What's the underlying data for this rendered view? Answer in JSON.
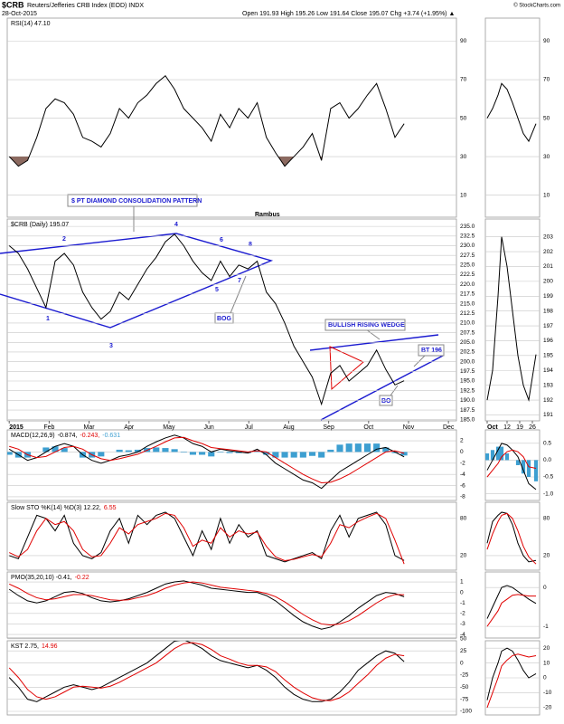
{
  "header": {
    "symbol": "$CRB",
    "name": "Reuters/Jefferies CRB Index (EOD) INDX",
    "date": "28-Oct-2015",
    "quote": "Open 191.93 High 195.26 Low 191.64 Close 195.07 Chg +3.74 (+1.95%) ▲",
    "credit": "© StockCharts.com",
    "author": "Rambus"
  },
  "annotations": [
    "$ PT DIAMOND CONSOLIDATION PATTERN",
    "1",
    "2",
    "3",
    "4",
    "5",
    "6",
    "7",
    "8",
    "BOG",
    "BULLISH RISING WEDGE",
    "BT 196",
    "BO"
  ],
  "time_axis": {
    "x": [
      0,
      0.23,
      0.46,
      0.69,
      0.92,
      1.15,
      1.38,
      1.61,
      1.84,
      2.07,
      2.3,
      2.53,
      2.76,
      2.99,
      3.22,
      3.45,
      3.68,
      3.91,
      4.14,
      4.37,
      4.6,
      4.83,
      5.06,
      5.29,
      5.52,
      5.75,
      5.98,
      6.21,
      6.44,
      6.67,
      6.9,
      7.13,
      7.36,
      7.59,
      7.82,
      8.05,
      8.28,
      8.51,
      8.74,
      8.97,
      9.2,
      9.43,
      9.66,
      9.89
    ],
    "xlim": [
      -0.05,
      11.2
    ],
    "xticks": [
      {
        "value": 0,
        "label": "2015"
      },
      {
        "value": 1,
        "label": "Feb"
      },
      {
        "value": 2,
        "label": "Mar"
      },
      {
        "value": 3,
        "label": "Apr"
      },
      {
        "value": 4,
        "label": "May"
      },
      {
        "value": 5,
        "label": "Jun"
      },
      {
        "value": 6,
        "label": "Jul"
      },
      {
        "value": 7,
        "label": "Aug"
      },
      {
        "value": 8,
        "label": "Sep"
      },
      {
        "value": 9,
        "label": "Oct"
      },
      {
        "value": 10,
        "label": "Nov"
      },
      {
        "value": 11,
        "label": "Dec"
      }
    ],
    "mini_x": [
      1,
      4,
      7,
      9,
      12,
      15,
      18,
      21,
      24,
      28
    ],
    "mini_xlim": [
      0,
      30
    ],
    "mini_xticks": [
      {
        "value": 1,
        "label": "Oct"
      },
      12,
      19,
      26
    ]
  },
  "chart_data": [
    {
      "type": "line",
      "label_parts": [
        {
          "text": "RSI(14) 47.10",
          "color": "#000000"
        }
      ],
      "ylim": [
        -1.5,
        102
      ],
      "yticks": [
        90,
        70,
        50,
        30,
        10
      ],
      "fill_below": 30,
      "fill_color": "#8c6a60",
      "series": [
        {
          "color": "#000000",
          "values": [
            30,
            25,
            28,
            40,
            55,
            60,
            58,
            52,
            40,
            38,
            35,
            42,
            55,
            50,
            58,
            62,
            68,
            72,
            65,
            55,
            50,
            45,
            38,
            52,
            45,
            55,
            50,
            58,
            40,
            32,
            25,
            30,
            35,
            42,
            28,
            55,
            58,
            50,
            55,
            62,
            68,
            55,
            40,
            47.1
          ]
        }
      ],
      "mini_ylim": [
        -1.5,
        102
      ],
      "mini_yticks": [
        90,
        70,
        50,
        30,
        10
      ],
      "mini": [
        {
          "color": "#000000",
          "values": [
            50,
            55,
            62,
            68,
            65,
            58,
            50,
            42,
            38,
            47.1
          ]
        }
      ]
    },
    {
      "type": "line",
      "label_parts": [
        {
          "text": "$CRB (Daily) 195.07",
          "color": "#000000"
        }
      ],
      "ylim": [
        184.7,
        236.9
      ],
      "yticks": [
        {
          "value": 235,
          "label": "235.0"
        },
        {
          "value": 232.5,
          "label": "232.5"
        },
        {
          "value": 230,
          "label": "230.0"
        },
        {
          "value": 227.5,
          "label": "227.5"
        },
        {
          "value": 225,
          "label": "225.0"
        },
        {
          "value": 222.5,
          "label": "222.5"
        },
        {
          "value": 220,
          "label": "220.0"
        },
        {
          "value": 217.5,
          "label": "217.5"
        },
        {
          "value": 215,
          "label": "215.0"
        },
        {
          "value": 212.5,
          "label": "212.5"
        },
        {
          "value": 210,
          "label": "210.0"
        },
        {
          "value": 207.5,
          "label": "207.5"
        },
        {
          "value": 205,
          "label": "205.0"
        },
        {
          "value": 202.5,
          "label": "202.5"
        },
        {
          "value": 200,
          "label": "200.0"
        },
        {
          "value": 197.5,
          "label": "197.5"
        },
        {
          "value": 195,
          "label": "195.0"
        },
        {
          "value": 192.5,
          "label": "192.5"
        },
        {
          "value": 190,
          "label": "190.0"
        },
        {
          "value": 187.5,
          "label": "187.5"
        },
        {
          "value": 185,
          "label": "185.0"
        }
      ],
      "series": [
        {
          "color": "#000000",
          "values": [
            230,
            228,
            224,
            219,
            214,
            226,
            228,
            225,
            218,
            214,
            211,
            213,
            218,
            216,
            220,
            224,
            227,
            231,
            233,
            230,
            226,
            223,
            221,
            226,
            222,
            225,
            224,
            226,
            218,
            215,
            210,
            204,
            200,
            196,
            189,
            197,
            199,
            195,
            197,
            199,
            203,
            198,
            194,
            195.07
          ]
        }
      ],
      "mini_ylim": [
        190.6,
        204.2
      ],
      "mini_yticks": [
        203,
        202,
        201,
        200,
        199,
        198,
        197,
        196,
        195,
        194,
        193,
        192,
        191
      ],
      "mini": [
        {
          "color": "#000000",
          "values": [
            192,
            194,
            199,
            203,
            201,
            198,
            195,
            193,
            192,
            195.07
          ]
        }
      ]
    },
    {
      "type": "line",
      "label_parts": [
        {
          "text": "MACD(12,26,9)",
          "color": "#000000"
        },
        {
          "text": "-0.874,",
          "color": "#000000"
        },
        {
          "text": "-0.243,",
          "color": "#e00000"
        },
        {
          "text": "-0.631",
          "color": "#3d9fd1"
        }
      ],
      "ylim": [
        -8.65,
        3.94
      ],
      "yticks": [
        2,
        0,
        -2,
        -4,
        -6,
        -8
      ],
      "series": [
        {
          "style": "bars",
          "color": "#3d9fd1",
          "values": [
            -0.5,
            -1,
            -1,
            0,
            0.8,
            1,
            0.7,
            0,
            -1,
            -1,
            -0.8,
            0,
            0.4,
            0.3,
            0.4,
            0.7,
            0.8,
            0.7,
            0.5,
            -0.1,
            -0.5,
            -0.5,
            -0.8,
            -0.1,
            -0.2,
            -0.2,
            -0.2,
            0.3,
            -0.5,
            -1,
            -1,
            -1,
            -1,
            -0.7,
            -1,
            0.4,
            1.3,
            1.5,
            1.5,
            1.5,
            1.5,
            0.8,
            -0.2,
            -0.631
          ]
        },
        {
          "color": "#000000",
          "values": [
            0.5,
            -0.5,
            -1.5,
            -1,
            0,
            1,
            1.5,
            1,
            -0.5,
            -1.5,
            -2,
            -1.5,
            -0.8,
            -0.5,
            0,
            1,
            1.8,
            2.5,
            3,
            2.5,
            1.5,
            1,
            0,
            0.5,
            0.2,
            0,
            -0.2,
            0.5,
            -0.5,
            -2,
            -3,
            -4,
            -5,
            -5.5,
            -6.5,
            -5,
            -3.5,
            -2.5,
            -1.5,
            -0.5,
            0.5,
            0.8,
            0,
            -0.874
          ]
        },
        {
          "color": "#e00000",
          "values": [
            1,
            0.5,
            -0.5,
            -1,
            -0.8,
            0,
            0.8,
            1,
            0.5,
            -0.5,
            -1.2,
            -1.5,
            -1.2,
            -0.8,
            -0.4,
            0.3,
            1,
            1.8,
            2.5,
            2.6,
            2,
            1.5,
            0.8,
            0.6,
            0.4,
            0.2,
            0,
            0.2,
            0,
            -1,
            -2,
            -3,
            -4,
            -4.8,
            -5.5,
            -5.4,
            -4.8,
            -4,
            -3,
            -2,
            -1,
            0,
            0.2,
            -0.243
          ]
        }
      ],
      "mini_ylim": [
        -1.2,
        0.9
      ],
      "mini_yticks": [
        {
          "value": 0.5,
          "label": "0.5"
        },
        {
          "value": 0,
          "label": "0.0"
        },
        {
          "value": -0.5,
          "label": "-0.5"
        },
        {
          "value": -1,
          "label": "-1.0"
        }
      ],
      "mini": [
        {
          "style": "bars",
          "color": "#3d9fd1",
          "values": [
            0.2,
            0.3,
            0.4,
            0.4,
            0.2,
            0,
            -0.15,
            -0.4,
            -0.5,
            -0.631
          ]
        },
        {
          "color": "#000000",
          "values": [
            -0.3,
            0,
            0.3,
            0.5,
            0.45,
            0.3,
            0.1,
            -0.3,
            -0.7,
            -0.874
          ]
        },
        {
          "color": "#e00000",
          "values": [
            -0.5,
            -0.3,
            -0.1,
            0.1,
            0.25,
            0.3,
            0.25,
            0.1,
            -0.2,
            -0.243
          ]
        }
      ]
    },
    {
      "type": "line",
      "label_parts": [
        {
          "text": "Slow STO %K(14) %D(3) 12.22,",
          "color": "#000000"
        },
        {
          "text": "6.55",
          "color": "#e00000"
        }
      ],
      "ylim": [
        -3.4,
        106
      ],
      "yticks": [
        80,
        20
      ],
      "series": [
        {
          "color": "#000000",
          "values": [
            20,
            15,
            50,
            85,
            80,
            60,
            85,
            40,
            20,
            15,
            25,
            60,
            80,
            40,
            85,
            70,
            85,
            90,
            80,
            50,
            20,
            60,
            30,
            80,
            40,
            70,
            50,
            60,
            20,
            15,
            10,
            15,
            20,
            25,
            15,
            60,
            85,
            50,
            80,
            85,
            90,
            70,
            20,
            12.22
          ]
        },
        {
          "color": "#e00000",
          "values": [
            25,
            18,
            30,
            60,
            80,
            70,
            75,
            60,
            30,
            18,
            20,
            40,
            65,
            55,
            70,
            75,
            80,
            88,
            85,
            65,
            35,
            45,
            40,
            65,
            50,
            60,
            55,
            58,
            35,
            18,
            12,
            14,
            18,
            22,
            18,
            40,
            70,
            65,
            75,
            82,
            88,
            80,
            45,
            6.55
          ]
        }
      ],
      "mini_ylim": [
        -3.4,
        106
      ],
      "mini_yticks": [
        80,
        20
      ],
      "mini": [
        {
          "color": "#000000",
          "values": [
            40,
            75,
            85,
            90,
            88,
            70,
            40,
            20,
            10,
            12.22
          ]
        },
        {
          "color": "#e00000",
          "values": [
            30,
            55,
            75,
            85,
            88,
            80,
            60,
            35,
            18,
            6.55
          ]
        }
      ]
    },
    {
      "type": "line",
      "label_parts": [
        {
          "text": "PMO(35,20,10) -0.41,",
          "color": "#000000"
        },
        {
          "text": "-0.22",
          "color": "#e00000"
        }
      ],
      "ylim": [
        -4.34,
        1.95
      ],
      "yticks": [
        1,
        0,
        -1,
        -2,
        -3,
        -4
      ],
      "series": [
        {
          "color": "#000000",
          "values": [
            0.3,
            -0.3,
            -0.8,
            -1,
            -0.8,
            -0.4,
            0,
            0.1,
            -0.1,
            -0.5,
            -0.8,
            -0.9,
            -0.8,
            -0.6,
            -0.3,
            0,
            0.4,
            0.8,
            1,
            1.1,
            0.9,
            0.7,
            0.4,
            0.3,
            0.2,
            0.1,
            0,
            0,
            -0.3,
            -0.8,
            -1.5,
            -2.2,
            -2.8,
            -3.2,
            -3.5,
            -3.3,
            -2.8,
            -2.2,
            -1.5,
            -0.9,
            -0.3,
            0,
            -0.1,
            -0.41
          ]
        },
        {
          "color": "#e00000",
          "values": [
            0.8,
            0.4,
            -0.1,
            -0.5,
            -0.7,
            -0.6,
            -0.4,
            -0.2,
            -0.2,
            -0.3,
            -0.5,
            -0.7,
            -0.75,
            -0.7,
            -0.5,
            -0.3,
            0,
            0.4,
            0.7,
            0.9,
            1,
            0.9,
            0.7,
            0.5,
            0.4,
            0.3,
            0.2,
            0.1,
            -0.1,
            -0.4,
            -0.9,
            -1.5,
            -2.1,
            -2.6,
            -3,
            -3.1,
            -3,
            -2.7,
            -2.2,
            -1.6,
            -1,
            -0.5,
            -0.2,
            -0.22
          ]
        }
      ],
      "mini_ylim": [
        -1.3,
        0.4
      ],
      "mini_yticks": [
        0,
        -1
      ],
      "mini": [
        {
          "color": "#000000",
          "values": [
            -0.8,
            -0.5,
            -0.2,
            0,
            0.05,
            0,
            -0.1,
            -0.2,
            -0.3,
            -0.41
          ]
        },
        {
          "color": "#e00000",
          "values": [
            -1,
            -0.8,
            -0.6,
            -0.4,
            -0.3,
            -0.2,
            -0.18,
            -0.2,
            -0.22,
            -0.22
          ]
        }
      ]
    },
    {
      "type": "line",
      "label_parts": [
        {
          "text": "KST 2.75,",
          "color": "#000000"
        },
        {
          "text": "14.96",
          "color": "#e00000"
        }
      ],
      "ylim": [
        -107.5,
        46
      ],
      "yticks": [
        50,
        25,
        0,
        -25,
        -50,
        -75,
        -100
      ],
      "series": [
        {
          "color": "#000000",
          "values": [
            -30,
            -50,
            -75,
            -80,
            -70,
            -60,
            -50,
            -45,
            -50,
            -55,
            -50,
            -40,
            -30,
            -20,
            -10,
            0,
            15,
            30,
            45,
            48,
            40,
            30,
            15,
            5,
            0,
            -5,
            -10,
            -5,
            -15,
            -30,
            -50,
            -65,
            -75,
            -80,
            -80,
            -75,
            -60,
            -40,
            -15,
            0,
            15,
            25,
            20,
            2.75
          ]
        },
        {
          "color": "#e00000",
          "values": [
            -10,
            -30,
            -55,
            -70,
            -75,
            -70,
            -60,
            -50,
            -48,
            -50,
            -52,
            -48,
            -40,
            -30,
            -20,
            -10,
            0,
            15,
            30,
            40,
            42,
            38,
            28,
            15,
            8,
            0,
            -5,
            -5,
            -8,
            -18,
            -35,
            -50,
            -62,
            -72,
            -77,
            -78,
            -72,
            -60,
            -42,
            -25,
            -5,
            10,
            18,
            14.96
          ]
        }
      ],
      "mini_ylim": [
        -25,
        25
      ],
      "mini_yticks": [
        20,
        10,
        0,
        -10,
        -20
      ],
      "mini": [
        {
          "color": "#000000",
          "values": [
            -15,
            0,
            10,
            18,
            20,
            18,
            12,
            5,
            0,
            2.75
          ]
        },
        {
          "color": "#e00000",
          "values": [
            -20,
            -10,
            0,
            8,
            12,
            15,
            16,
            15,
            14,
            14.96
          ]
        }
      ]
    }
  ]
}
